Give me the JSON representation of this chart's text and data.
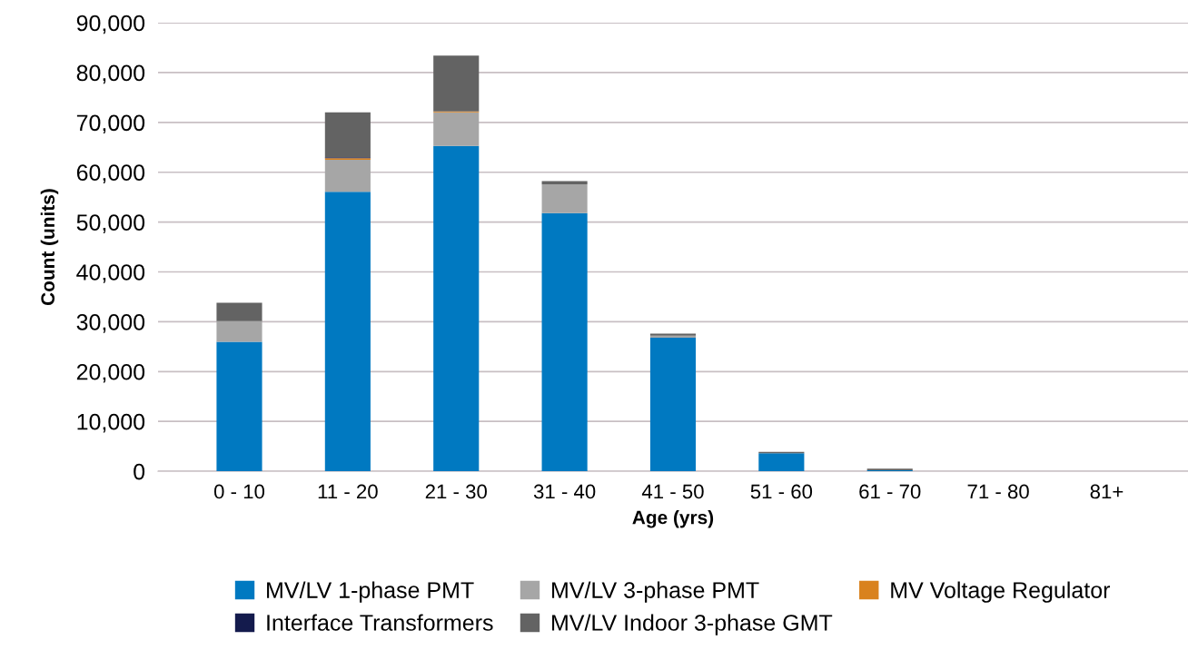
{
  "chart_data": {
    "type": "bar",
    "stacked": true,
    "xlabel": "Age (yrs)",
    "ylabel": "Count (units)",
    "categories": [
      "0 - 10",
      "11 - 20",
      "21 - 30",
      "31 - 40",
      "41 - 50",
      "51 - 60",
      "61 - 70",
      "71 - 80",
      "81+"
    ],
    "series": [
      {
        "name": "MV/LV 1-phase PMT",
        "color": "#0079c1",
        "values": [
          26000,
          56100,
          65300,
          51800,
          26800,
          3600,
          200,
          0,
          0
        ]
      },
      {
        "name": "MV/LV 3-phase PMT",
        "color": "#a6a6a6",
        "values": [
          4100,
          6400,
          6700,
          5800,
          400,
          0,
          null,
          0,
          0
        ]
      },
      {
        "name": "MV Voltage Regulator",
        "color": "#d9821e",
        "values": [
          0,
          300,
          200,
          0,
          0,
          0,
          0,
          0,
          0
        ]
      },
      {
        "name": "Interface Transformers",
        "color": "#141b4d",
        "values": [
          0,
          200,
          0,
          0,
          0,
          0,
          0,
          0,
          0
        ]
      },
      {
        "name": "MV/LV Indoor 3-phase GMT",
        "color": "#636363",
        "values": [
          3700,
          9000,
          11200,
          600,
          400,
          300,
          300,
          0,
          0
        ]
      }
    ],
    "ylim": [
      0,
      90000
    ],
    "yticks": [
      {
        "value": 0,
        "label": "0"
      },
      {
        "value": 10000,
        "label": "10,000"
      },
      {
        "value": 20000,
        "label": "20,000"
      },
      {
        "value": 30000,
        "label": "30,000"
      },
      {
        "value": 40000,
        "label": "40,000"
      },
      {
        "value": 50000,
        "label": "50,000"
      },
      {
        "value": 60000,
        "label": "60,000"
      },
      {
        "value": 70000,
        "label": "70,000"
      },
      {
        "value": 80000,
        "label": "80,000"
      },
      {
        "value": 90000,
        "label": "90,000"
      }
    ],
    "grid": "y",
    "legend": "bottom"
  }
}
